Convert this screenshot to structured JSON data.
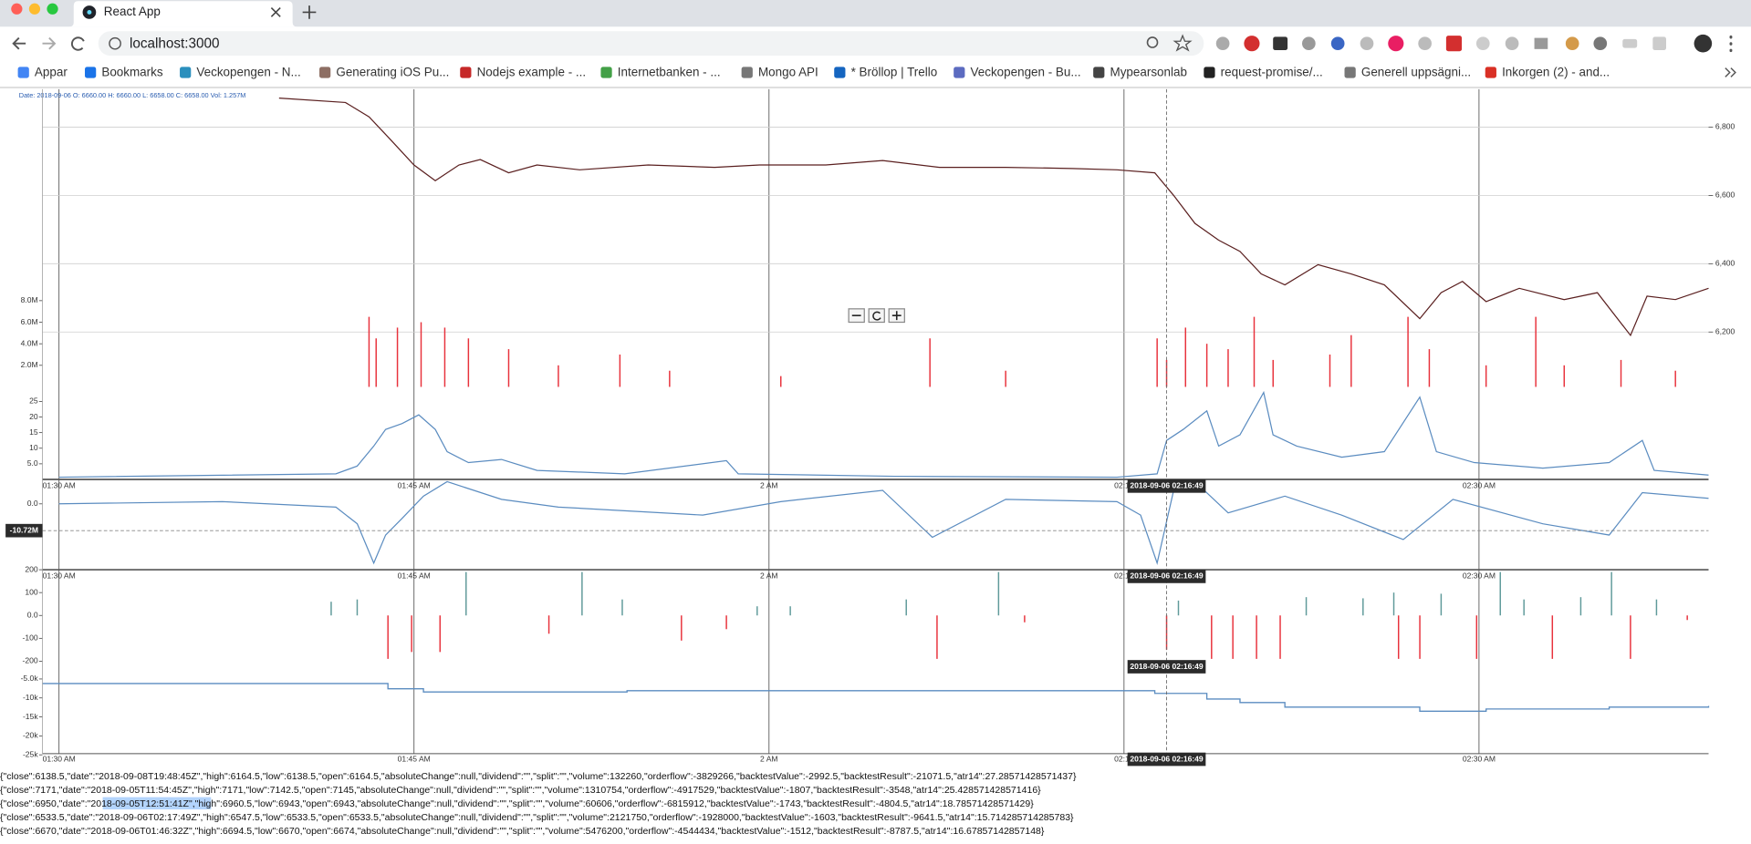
{
  "tab": {
    "title": "React App"
  },
  "address_bar": {
    "url": "localhost:3000"
  },
  "bookmarks": [
    "Appar",
    "Bookmarks",
    "Veckopengen - N...",
    "Generating iOS Pu...",
    "Nodejs example - ...",
    "Internetbanken - ...",
    "Mongo API",
    "* Bröllop | Trello",
    "Veckopengen - Bu...",
    "Mypearsonlab",
    "request-promise/...",
    "Generell uppsägni...",
    "Inkorgen (2) - and..."
  ],
  "tooltip": "Date: 2018-09-06 O: 6660.00 H: 6660.00 L: 6658.00 C: 6658.00 Vol: 1.257M",
  "x_axis": {
    "xlim": [
      -0.7,
      69.7
    ],
    "grid": true,
    "xticks": [
      {
        "value": 0,
        "label": "01:30 AM"
      },
      {
        "value": 15,
        "label": "01:45 AM"
      },
      {
        "value": 30,
        "label": "2 AM"
      },
      {
        "value": 45,
        "label": "02:15"
      },
      {
        "value": 60,
        "label": "02:30 AM"
      }
    ]
  },
  "crosshair": {
    "x": 46.8,
    "label": "2018-09-06 02:16:49",
    "value": {
      "value": -10720000,
      "label": "-10.72M"
    }
  },
  "chart_data": [
    {
      "type": "line",
      "color": "#5a1f1f",
      "grid": true,
      "ylim": [
        6036,
        6911
      ],
      "yticks": [
        {
          "value": 6200,
          "label": "6,200"
        },
        {
          "value": 6400,
          "label": "6,400"
        },
        {
          "value": 6600,
          "label": "6,600"
        },
        {
          "value": 6800,
          "label": "6,800"
        }
      ],
      "x": [
        9.3,
        12.1,
        13.1,
        14.0,
        15.0,
        15.9,
        16.9,
        17.8,
        19.0,
        20.2,
        22.0,
        24.9,
        27.7,
        29.6,
        32.4,
        34.8,
        37.2,
        40.0,
        42.8,
        44.7,
        46.3,
        47.1,
        48.0,
        49.0,
        49.9,
        50.8,
        51.8,
        53.2,
        54.6,
        56.0,
        57.5,
        58.4,
        59.3,
        60.3,
        61.7,
        63.6,
        65.0,
        66.4,
        67.1,
        68.3,
        69.7
      ],
      "values": [
        6885,
        6872,
        6830,
        6764,
        6689,
        6643,
        6689,
        6705,
        6666,
        6689,
        6675,
        6689,
        6682,
        6689,
        6689,
        6702,
        6682,
        6682,
        6679,
        6675,
        6666,
        6600,
        6518,
        6469,
        6436,
        6370,
        6338,
        6397,
        6370,
        6338,
        6239,
        6315,
        6348,
        6289,
        6328,
        6295,
        6315,
        6190,
        6305,
        6295,
        6328
      ]
    },
    {
      "type": "bar",
      "color": "#e8323c",
      "ylim": [
        0,
        9000000
      ],
      "yticks": [
        {
          "value": 2000000,
          "label": "2.0M"
        },
        {
          "value": 4000000,
          "label": "4.0M"
        },
        {
          "value": 6000000,
          "label": "6.0M"
        },
        {
          "value": 8000000,
          "label": "8.0M"
        }
      ],
      "x": [
        13.1,
        13.4,
        14.3,
        15.3,
        16.3,
        17.3,
        19.0,
        21.1,
        23.7,
        25.8,
        30.5,
        36.8,
        40.0,
        46.4,
        46.8,
        47.6,
        48.5,
        49.4,
        50.5,
        51.3,
        53.7,
        54.6,
        57.0,
        57.9,
        60.3,
        62.4,
        63.6,
        66.0,
        68.3
      ],
      "values": [
        6500000,
        4500000,
        5500000,
        6000000,
        5500000,
        4500000,
        3500000,
        2000000,
        3000000,
        1500000,
        1000000,
        4500000,
        1500000,
        4500000,
        2500000,
        5500000,
        4000000,
        3500000,
        6500000,
        2500000,
        3000000,
        4800000,
        6500000,
        3500000,
        2000000,
        6500000,
        2000000,
        2500000,
        1500000
      ]
    },
    {
      "type": "line",
      "color": "#5b8cc0",
      "ylim": [
        0,
        28.6
      ],
      "yticks": [
        {
          "value": 5,
          "label": "5.0"
        },
        10,
        15,
        20,
        25
      ],
      "x": [
        0,
        11.7,
        12.6,
        13.3,
        13.8,
        14.5,
        15.2,
        15.9,
        16.4,
        17.3,
        18.7,
        20.2,
        23.9,
        28.2,
        28.7,
        35.3,
        44.7,
        46.4,
        46.8,
        47.5,
        48.5,
        49.0,
        49.9,
        50.9,
        51.3,
        52.3,
        54.2,
        56.0,
        57.5,
        58.2,
        59.8,
        62.7,
        65.5,
        66.9,
        67.4,
        69.7
      ],
      "values": [
        0.7,
        1.8,
        4.3,
        10.7,
        16,
        17.9,
        20.7,
        16,
        8.9,
        5.4,
        6.4,
        2.9,
        1.8,
        6,
        1.8,
        1,
        0.7,
        1.8,
        12.5,
        16,
        22,
        10.7,
        14.3,
        27.9,
        14.3,
        10.7,
        7.1,
        8.9,
        26.4,
        8.9,
        5.4,
        3.6,
        5.4,
        12.5,
        2.9,
        1.4
      ]
    },
    {
      "type": "line",
      "color": "#5b8cc0",
      "ylim": [
        -26400000,
        9800000
      ],
      "yticks": [
        {
          "value": 0,
          "label": "0.0"
        }
      ],
      "x": [
        0,
        6.9,
        11.7,
        12.6,
        13.3,
        13.8,
        14.5,
        15.4,
        16.4,
        18.7,
        21.1,
        27.2,
        30.5,
        34.8,
        36.9,
        40.0,
        44.7,
        45.7,
        46.4,
        47.1,
        48.0,
        49.4,
        51.8,
        54.2,
        56.8,
        58.9,
        62.7,
        65.5,
        66.9,
        69.7
      ],
      "values": [
        0,
        900000,
        -1300000,
        -8000000,
        -23700000,
        -12500000,
        -5800000,
        3100000,
        8900000,
        1800000,
        -1300000,
        -4500000,
        900000,
        5400000,
        -13400000,
        1800000,
        900000,
        -4500000,
        -23700000,
        5400000,
        8900000,
        -3600000,
        3100000,
        -4500000,
        -14300000,
        1800000,
        -8000000,
        -12500000,
        4500000,
        2200000
      ]
    },
    {
      "type": "bar",
      "colors": {
        "positive": "#5f9a9a",
        "negative": "#e8323c"
      },
      "ylim": [
        -200,
        200
      ],
      "yticks": [
        -200,
        -100,
        {
          "value": 0,
          "label": "0.0"
        },
        100,
        200
      ],
      "x": [
        11.5,
        12.6,
        17.2,
        22.1,
        23.8,
        29.5,
        30.9,
        35.8,
        39.7,
        47.3,
        52.7,
        55.1,
        56.4,
        58.4,
        60.9,
        61.9,
        64.3,
        65.6,
        67.5,
        13.9,
        14.9,
        16.1,
        20.7,
        26.3,
        28.2,
        37.1,
        40.8,
        46.8,
        48.7,
        49.6,
        50.6,
        51.6,
        56.6,
        57.5,
        59.9,
        63.1,
        66.4,
        68.8
      ],
      "values": [
        60,
        70,
        190,
        190,
        70,
        40,
        40,
        70,
        190,
        65,
        80,
        75,
        100,
        95,
        190,
        70,
        80,
        190,
        70,
        -190,
        -160,
        -160,
        -80,
        -110,
        -60,
        -190,
        -30,
        -150,
        -190,
        -190,
        -190,
        -190,
        -190,
        -190,
        -190,
        -190,
        -190,
        -20
      ]
    },
    {
      "type": "step",
      "color": "#5b8cc0",
      "ylim": [
        -24700,
        -300
      ],
      "yticks": [
        {
          "value": -25000,
          "label": "-25k"
        },
        {
          "value": -20000,
          "label": "-20k"
        },
        {
          "value": -15000,
          "label": "-15k"
        },
        {
          "value": -10000,
          "label": "-10k"
        },
        {
          "value": -5000,
          "label": "-5.0k"
        }
      ],
      "x": [
        -0.7,
        13.9,
        15.4,
        24,
        46.3,
        48.5,
        49.9,
        51.8,
        57.5,
        60.3,
        65.5,
        69.7
      ],
      "values": [
        -6200,
        -7600,
        -8400,
        -8100,
        -8800,
        -10300,
        -11200,
        -12400,
        -13500,
        -12900,
        -12400,
        -12100
      ]
    }
  ],
  "log_lines": [
    "{\"close\":6138.5,\"date\":\"2018-09-08T19:48:45Z\",\"high\":6164.5,\"low\":6138.5,\"open\":6164.5,\"absoluteChange\":null,\"dividend\":\"\",\"split\":\"\",\"volume\":132260,\"orderflow\":-3829266,\"backtestValue\":-2992.5,\"backtestResult\":-21071.5,\"atr14\":27.28571428571437}",
    "{\"close\":7171,\"date\":\"2018-09-05T11:54:45Z\",\"high\":7171,\"low\":7142.5,\"open\":7145,\"absoluteChange\":null,\"dividend\":\"\",\"split\":\"\",\"volume\":1310754,\"orderflow\":-4917529,\"backtestValue\":-1807,\"backtestResult\":-3548,\"atr14\":25.428571428571416}",
    "{\"close\":6950,\"date\":\"2018-09-05T12:51:41Z\",\"high\":6960.5,\"low\":6943,\"open\":6943,\"absoluteChange\":null,\"dividend\":\"\",\"split\":\"\",\"volume\":60606,\"orderflow\":-6815912,\"backtestValue\":-1743,\"backtestResult\":-4804.5,\"atr14\":18.78571428571429}",
    "{\"close\":6533.5,\"date\":\"2018-09-06T02:17:49Z\",\"high\":6547.5,\"low\":6533.5,\"open\":6533.5,\"absoluteChange\":null,\"dividend\":\"\",\"split\":\"\",\"volume\":2121750,\"orderflow\":-1928000,\"backtestValue\":-1603,\"backtestResult\":-9641.5,\"atr14\":15.714285714285783}",
    "{\"close\":6670,\"date\":\"2018-09-06T01:46:32Z\",\"high\":6694.5,\"low\":6670,\"open\":6674,\"absoluteChange\":null,\"dividend\":\"\",\"split\":\"\",\"volume\":5476200,\"orderflow\":-4544434,\"backtestValue\":-1512,\"backtestResult\":-8787.5,\"atr14\":16.67857142857148}"
  ]
}
